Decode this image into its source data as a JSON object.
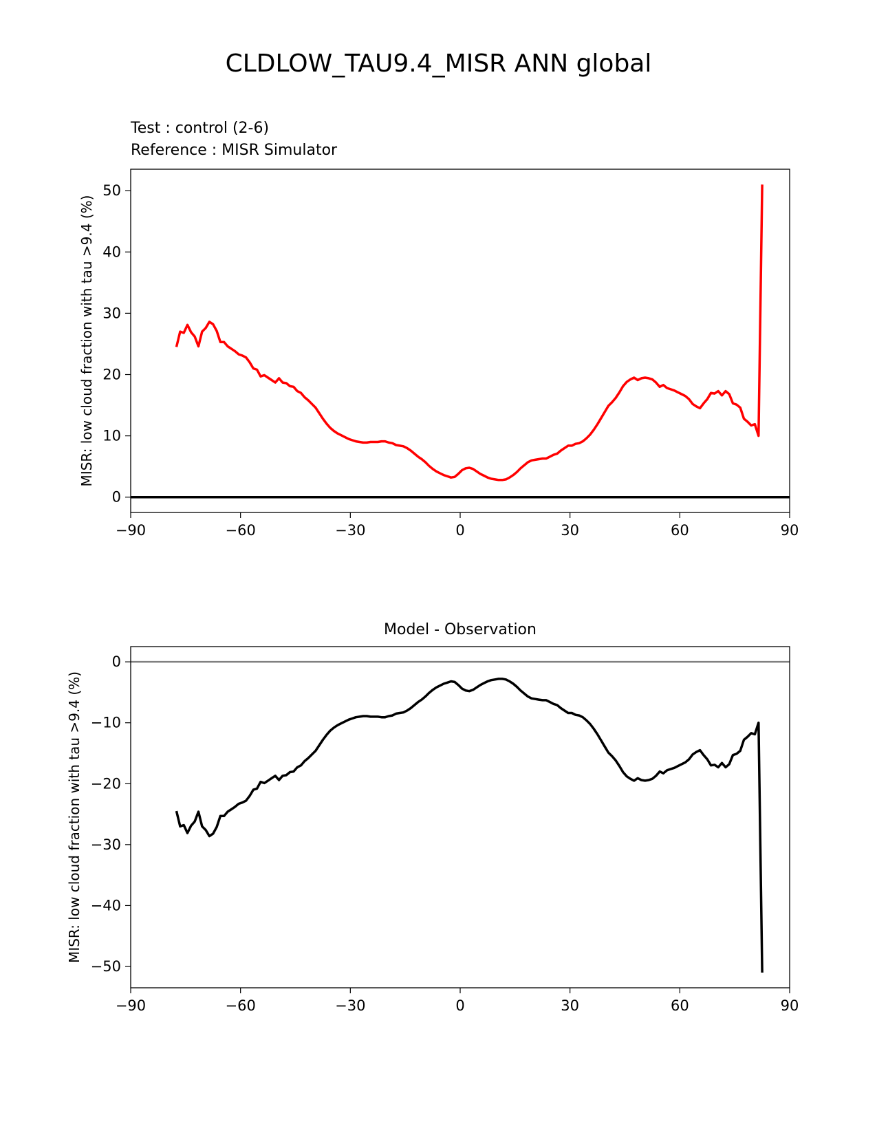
{
  "figure": {
    "title": "CLDLOW_TAU9.4_MISR ANN global",
    "test_label": "Test : control (2-6)",
    "reference_label": "Reference : MISR Simulator",
    "colors": {
      "test": "#000000",
      "reference": "#ff0000",
      "zero_line": "#808080"
    }
  },
  "chart_data": [
    {
      "type": "line",
      "title": "",
      "xlabel": "",
      "ylabel": "MISR: low cloud fraction with tau >9.4 (%)",
      "xlim": [
        -90,
        90
      ],
      "ylim": [
        -2.5,
        53.5
      ],
      "xticks": [
        -90,
        -60,
        -30,
        0,
        30,
        60,
        90
      ],
      "xtick_labels": [
        "−90",
        "−60",
        "−30",
        "0",
        "30",
        "60",
        "90"
      ],
      "yticks": [
        0,
        10,
        20,
        30,
        40,
        50
      ],
      "ytick_labels": [
        "0",
        "10",
        "20",
        "30",
        "40",
        "50"
      ],
      "grid": false,
      "series": [
        {
          "name": "Reference : MISR Simulator",
          "color": "#ff0000",
          "x": [
            -77.5,
            -76.5,
            -75.5,
            -74.5,
            -73.5,
            -72.5,
            -71.5,
            -70.5,
            -69.5,
            -68.5,
            -67.5,
            -66.5,
            -65.5,
            -64.5,
            -63.5,
            -62.5,
            -61.5,
            -60.5,
            -59.5,
            -58.5,
            -57.5,
            -56.5,
            -55.5,
            -54.5,
            -53.5,
            -52.5,
            -51.5,
            -50.5,
            -49.5,
            -48.5,
            -47.5,
            -46.5,
            -45.5,
            -44.5,
            -43.5,
            -42.5,
            -41.5,
            -40.5,
            -39.5,
            -38.5,
            -37.5,
            -36.5,
            -35.5,
            -34.5,
            -33.5,
            -32.5,
            -31.5,
            -30.5,
            -29.5,
            -28.5,
            -27.5,
            -26.5,
            -25.5,
            -24.5,
            -23.5,
            -22.5,
            -21.5,
            -20.5,
            -19.5,
            -18.5,
            -17.5,
            -16.5,
            -15.5,
            -14.5,
            -13.5,
            -12.5,
            -11.5,
            -10.5,
            -9.5,
            -8.5,
            -7.5,
            -6.5,
            -5.5,
            -4.5,
            -3.5,
            -2.5,
            -1.5,
            -0.5,
            0.5,
            1.5,
            2.5,
            3.5,
            4.5,
            5.5,
            6.5,
            7.5,
            8.5,
            9.5,
            10.5,
            11.5,
            12.5,
            13.5,
            14.5,
            15.5,
            16.5,
            17.5,
            18.5,
            19.5,
            20.5,
            21.5,
            22.5,
            23.5,
            24.5,
            25.5,
            26.5,
            27.5,
            28.5,
            29.5,
            30.5,
            31.5,
            32.5,
            33.5,
            34.5,
            35.5,
            36.5,
            37.5,
            38.5,
            39.5,
            40.5,
            41.5,
            42.5,
            43.5,
            44.5,
            45.5,
            46.5,
            47.5,
            48.5,
            49.5,
            50.5,
            51.5,
            52.5,
            53.5,
            54.5,
            55.5,
            56.5,
            57.5,
            58.5,
            59.5,
            60.5,
            61.5,
            62.5,
            63.5,
            64.5,
            65.5,
            66.5,
            67.5,
            68.5,
            69.5,
            70.5,
            71.5,
            72.5,
            73.5,
            74.5,
            75.5,
            76.5,
            77.5,
            78.5,
            79.5,
            80.5,
            81.5,
            82.5
          ],
          "y": [
            24.5,
            27.0,
            26.8,
            28.1,
            26.9,
            26.2,
            24.6,
            27.0,
            27.6,
            28.6,
            28.2,
            27.1,
            25.3,
            25.3,
            24.6,
            24.2,
            23.8,
            23.3,
            23.1,
            22.8,
            22.0,
            21.0,
            20.8,
            19.7,
            19.9,
            19.5,
            19.1,
            18.7,
            19.4,
            18.7,
            18.6,
            18.1,
            18.0,
            17.3,
            17.0,
            16.3,
            15.8,
            15.2,
            14.6,
            13.7,
            12.8,
            12.0,
            11.3,
            10.8,
            10.4,
            10.1,
            9.8,
            9.5,
            9.3,
            9.1,
            9.0,
            8.9,
            8.9,
            9.0,
            9.0,
            9.0,
            9.1,
            9.1,
            8.9,
            8.8,
            8.5,
            8.4,
            8.3,
            8.0,
            7.6,
            7.1,
            6.6,
            6.2,
            5.7,
            5.1,
            4.6,
            4.2,
            3.9,
            3.6,
            3.4,
            3.2,
            3.3,
            3.8,
            4.4,
            4.7,
            4.8,
            4.6,
            4.2,
            3.8,
            3.5,
            3.2,
            3.0,
            2.9,
            2.8,
            2.8,
            2.9,
            3.2,
            3.6,
            4.1,
            4.7,
            5.2,
            5.7,
            6.0,
            6.1,
            6.2,
            6.3,
            6.3,
            6.6,
            6.9,
            7.1,
            7.6,
            8.0,
            8.4,
            8.4,
            8.7,
            8.8,
            9.1,
            9.6,
            10.2,
            11.0,
            11.9,
            12.9,
            13.9,
            14.9,
            15.5,
            16.2,
            17.1,
            18.1,
            18.8,
            19.2,
            19.5,
            19.1,
            19.4,
            19.5,
            19.4,
            19.2,
            18.7,
            18.0,
            18.3,
            17.8,
            17.6,
            17.4,
            17.1,
            16.8,
            16.5,
            16.0,
            15.2,
            14.8,
            14.5,
            15.3,
            16.0,
            17.0,
            16.9,
            17.3,
            16.6,
            17.3,
            16.8,
            15.3,
            15.1,
            14.6,
            12.8,
            12.3,
            11.7,
            11.9,
            10.0,
            51.0
          ]
        },
        {
          "name": "Test : control (2-6)",
          "color": "#000000",
          "x": [
            -90,
            90
          ],
          "y": [
            0,
            0
          ]
        }
      ]
    },
    {
      "type": "line",
      "title": "Model - Observation",
      "xlabel": "",
      "ylabel": "MISR: low cloud fraction with tau >9.4 (%)",
      "xlim": [
        -90,
        90
      ],
      "ylim": [
        -53.5,
        2.5
      ],
      "xticks": [
        -90,
        -60,
        -30,
        0,
        30,
        60,
        90
      ],
      "xtick_labels": [
        "−90",
        "−60",
        "−30",
        "0",
        "30",
        "60",
        "90"
      ],
      "yticks": [
        0,
        -10,
        -20,
        -30,
        -40,
        -50
      ],
      "ytick_labels": [
        "0",
        "−10",
        "−20",
        "−30",
        "−40",
        "−50"
      ],
      "grid": false,
      "zero_line": true,
      "series": [
        {
          "name": "",
          "color": "#000000",
          "x": [
            -77.5,
            -76.5,
            -75.5,
            -74.5,
            -73.5,
            -72.5,
            -71.5,
            -70.5,
            -69.5,
            -68.5,
            -67.5,
            -66.5,
            -65.5,
            -64.5,
            -63.5,
            -62.5,
            -61.5,
            -60.5,
            -59.5,
            -58.5,
            -57.5,
            -56.5,
            -55.5,
            -54.5,
            -53.5,
            -52.5,
            -51.5,
            -50.5,
            -49.5,
            -48.5,
            -47.5,
            -46.5,
            -45.5,
            -44.5,
            -43.5,
            -42.5,
            -41.5,
            -40.5,
            -39.5,
            -38.5,
            -37.5,
            -36.5,
            -35.5,
            -34.5,
            -33.5,
            -32.5,
            -31.5,
            -30.5,
            -29.5,
            -28.5,
            -27.5,
            -26.5,
            -25.5,
            -24.5,
            -23.5,
            -22.5,
            -21.5,
            -20.5,
            -19.5,
            -18.5,
            -17.5,
            -16.5,
            -15.5,
            -14.5,
            -13.5,
            -12.5,
            -11.5,
            -10.5,
            -9.5,
            -8.5,
            -7.5,
            -6.5,
            -5.5,
            -4.5,
            -3.5,
            -2.5,
            -1.5,
            -0.5,
            0.5,
            1.5,
            2.5,
            3.5,
            4.5,
            5.5,
            6.5,
            7.5,
            8.5,
            9.5,
            10.5,
            11.5,
            12.5,
            13.5,
            14.5,
            15.5,
            16.5,
            17.5,
            18.5,
            19.5,
            20.5,
            21.5,
            22.5,
            23.5,
            24.5,
            25.5,
            26.5,
            27.5,
            28.5,
            29.5,
            30.5,
            31.5,
            32.5,
            33.5,
            34.5,
            35.5,
            36.5,
            37.5,
            38.5,
            39.5,
            40.5,
            41.5,
            42.5,
            43.5,
            44.5,
            45.5,
            46.5,
            47.5,
            48.5,
            49.5,
            50.5,
            51.5,
            52.5,
            53.5,
            54.5,
            55.5,
            56.5,
            57.5,
            58.5,
            59.5,
            60.5,
            61.5,
            62.5,
            63.5,
            64.5,
            65.5,
            66.5,
            67.5,
            68.5,
            69.5,
            70.5,
            71.5,
            72.5,
            73.5,
            74.5,
            75.5,
            76.5,
            77.5,
            78.5,
            79.5,
            80.5,
            81.5,
            82.5
          ],
          "y": [
            -24.5,
            -27.0,
            -26.8,
            -28.1,
            -26.9,
            -26.2,
            -24.6,
            -27.0,
            -27.6,
            -28.6,
            -28.2,
            -27.1,
            -25.3,
            -25.3,
            -24.6,
            -24.2,
            -23.8,
            -23.3,
            -23.1,
            -22.8,
            -22.0,
            -21.0,
            -20.8,
            -19.7,
            -19.9,
            -19.5,
            -19.1,
            -18.7,
            -19.4,
            -18.7,
            -18.6,
            -18.1,
            -18.0,
            -17.3,
            -17.0,
            -16.3,
            -15.8,
            -15.2,
            -14.6,
            -13.7,
            -12.8,
            -12.0,
            -11.3,
            -10.8,
            -10.4,
            -10.1,
            -9.8,
            -9.5,
            -9.3,
            -9.1,
            -9.0,
            -8.9,
            -8.9,
            -9.0,
            -9.0,
            -9.0,
            -9.1,
            -9.1,
            -8.9,
            -8.8,
            -8.5,
            -8.4,
            -8.3,
            -8.0,
            -7.6,
            -7.1,
            -6.6,
            -6.2,
            -5.7,
            -5.1,
            -4.6,
            -4.2,
            -3.9,
            -3.6,
            -3.4,
            -3.2,
            -3.3,
            -3.8,
            -4.4,
            -4.7,
            -4.8,
            -4.6,
            -4.2,
            -3.8,
            -3.5,
            -3.2,
            -3.0,
            -2.9,
            -2.8,
            -2.8,
            -2.9,
            -3.2,
            -3.6,
            -4.1,
            -4.7,
            -5.2,
            -5.7,
            -6.0,
            -6.1,
            -6.2,
            -6.3,
            -6.3,
            -6.6,
            -6.9,
            -7.1,
            -7.6,
            -8.0,
            -8.4,
            -8.4,
            -8.7,
            -8.8,
            -9.1,
            -9.6,
            -10.2,
            -11.0,
            -11.9,
            -12.9,
            -13.9,
            -14.9,
            -15.5,
            -16.2,
            -17.1,
            -18.1,
            -18.8,
            -19.2,
            -19.5,
            -19.1,
            -19.4,
            -19.5,
            -19.4,
            -19.2,
            -18.7,
            -18.0,
            -18.3,
            -17.8,
            -17.6,
            -17.4,
            -17.1,
            -16.8,
            -16.5,
            -16.0,
            -15.2,
            -14.8,
            -14.5,
            -15.3,
            -16.0,
            -17.0,
            -16.9,
            -17.3,
            -16.6,
            -17.3,
            -16.8,
            -15.3,
            -15.1,
            -14.6,
            -12.8,
            -12.3,
            -11.7,
            -11.9,
            -10.0,
            -51.0
          ]
        }
      ]
    }
  ]
}
